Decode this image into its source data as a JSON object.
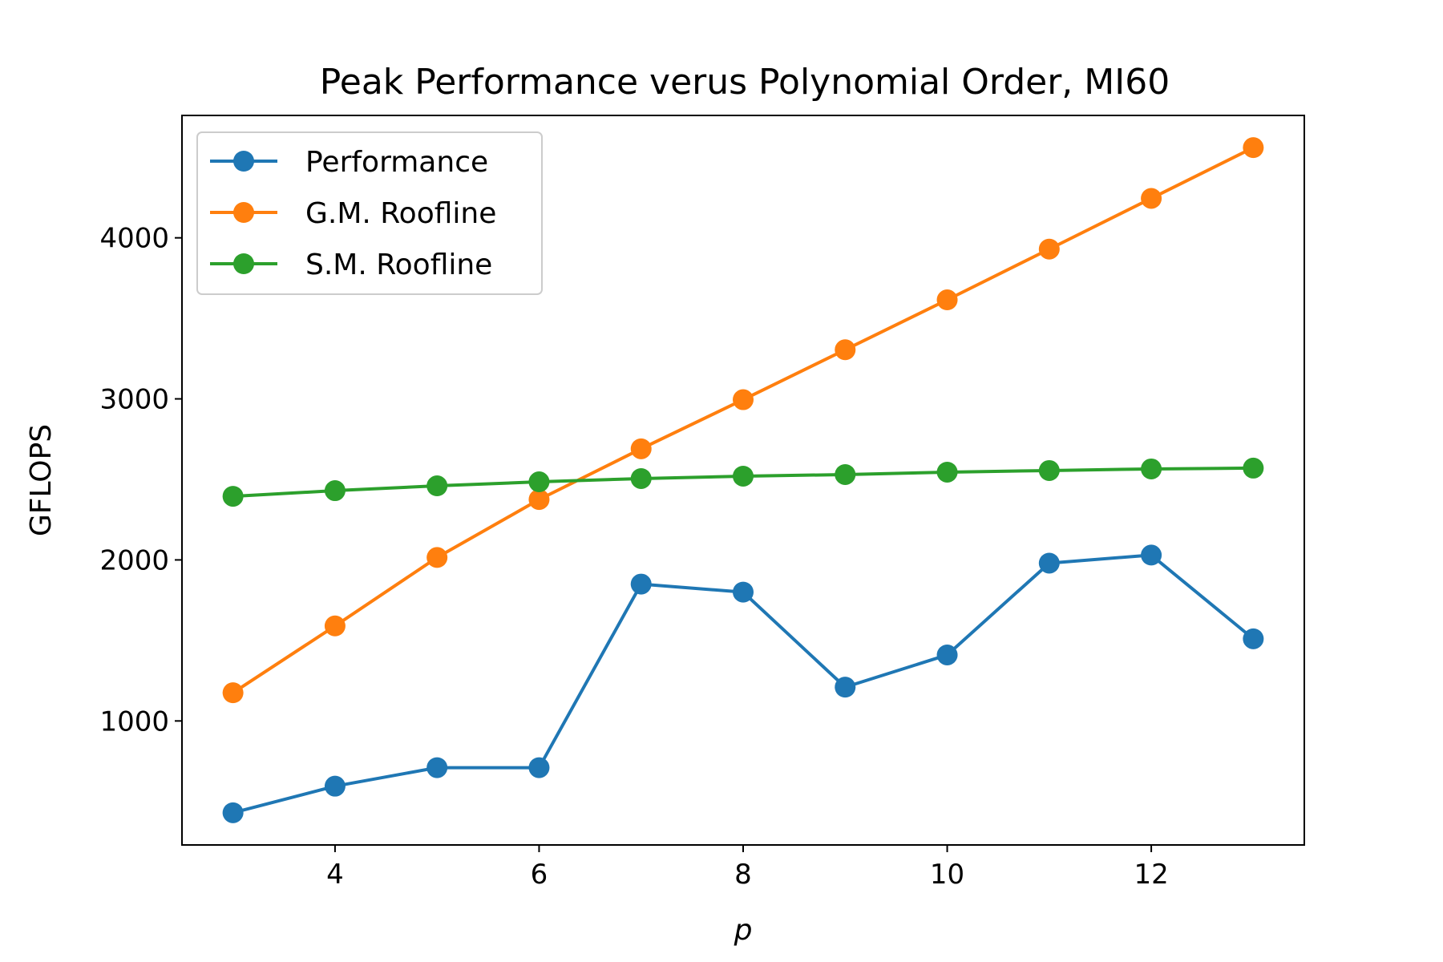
{
  "chart_data": {
    "type": "line",
    "title": "Peak Performance verus Polynomial Order, MI60",
    "xlabel": "p",
    "ylabel": "GFLOPS",
    "xlim": [
      2.5,
      13.5
    ],
    "ylim": [
      230,
      4760
    ],
    "xticks": [
      4,
      6,
      8,
      10,
      12
    ],
    "yticks": [
      1000,
      2000,
      3000,
      4000
    ],
    "grid": false,
    "legend_position": "top-left",
    "x": [
      3,
      4,
      5,
      6,
      7,
      8,
      9,
      10,
      11,
      12,
      13
    ],
    "series": [
      {
        "name": "Performance",
        "color": "#1f77b4",
        "marker": "circle",
        "values": [
          430,
          595,
          710,
          710,
          1850,
          1800,
          1210,
          1410,
          1980,
          2030,
          1510
        ]
      },
      {
        "name": "G.M. Roofline",
        "color": "#ff7f0e",
        "marker": "circle",
        "values": [
          1175,
          1590,
          2015,
          2375,
          2690,
          2995,
          3305,
          3615,
          3930,
          4245,
          4560
        ]
      },
      {
        "name": "S.M. Roofline",
        "color": "#2ca02c",
        "marker": "circle",
        "values": [
          2395,
          2430,
          2460,
          2485,
          2505,
          2520,
          2530,
          2545,
          2555,
          2565,
          2570
        ]
      }
    ]
  }
}
